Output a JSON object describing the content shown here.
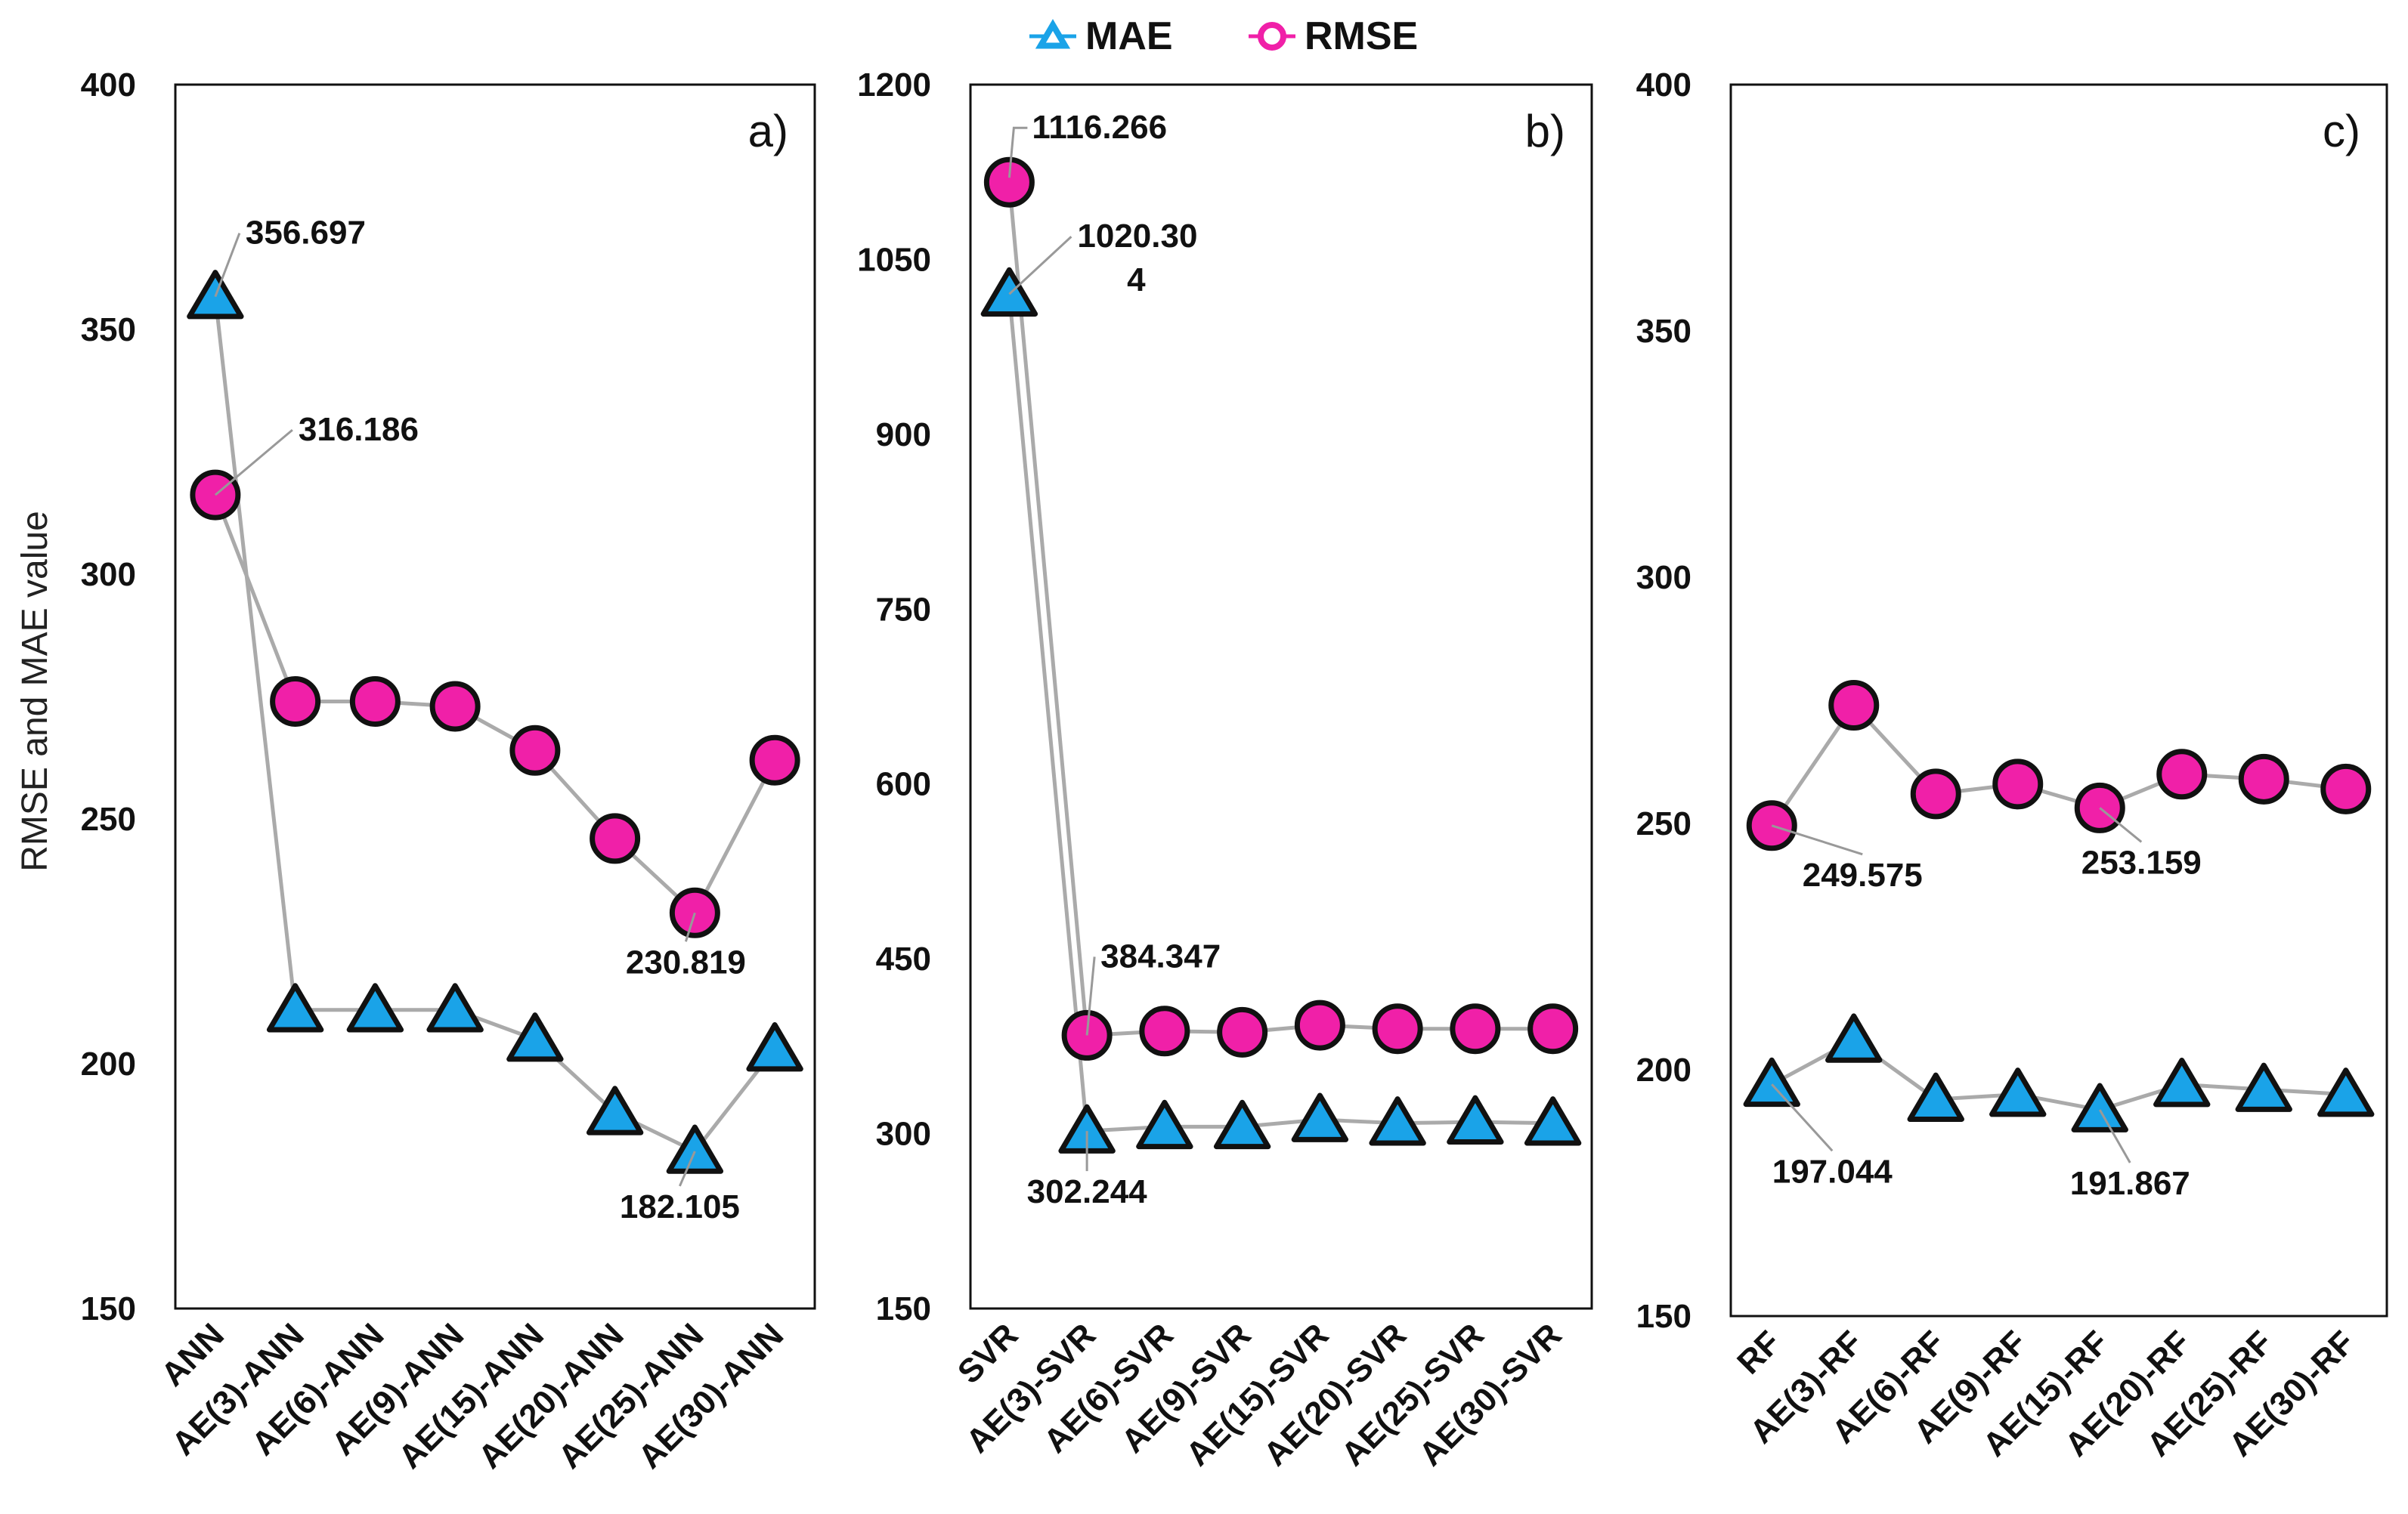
{
  "chart_data": {
    "type": "line",
    "ylabel": "RMSE and MAE value",
    "legend": [
      {
        "name": "MAE",
        "marker": "triangle",
        "color": "#1aa3e8"
      },
      {
        "name": "RMSE",
        "marker": "circle",
        "color": "#f020a8"
      }
    ],
    "colors": {
      "mae": "#1aa3e8",
      "rmse": "#f020a8",
      "line": "#aaaaaa",
      "stroke": "#111111"
    },
    "panels": [
      {
        "label": "a)",
        "ylim": [
          150,
          400
        ],
        "yticks": [
          "150",
          "200",
          "250",
          "300",
          "350",
          "400"
        ],
        "categories": [
          "ANN",
          "AE(3)-ANN",
          "AE(6)-ANN",
          "AE(9)-ANN",
          "AE(15)-ANN",
          "AE(20)-ANN",
          "AE(25)-ANN",
          "AE(30)-ANN"
        ],
        "series": [
          {
            "name": "MAE",
            "values": [
              356.697,
              211,
              211,
              211,
              205,
              190,
              182.105,
              203
            ]
          },
          {
            "name": "RMSE",
            "values": [
              316.186,
              274,
              274,
              273,
              264,
              246,
              230.819,
              262
            ]
          }
        ],
        "annotations": [
          {
            "text": "356.697",
            "series": "MAE",
            "index": 0
          },
          {
            "text": "316.186",
            "series": "RMSE",
            "index": 0
          },
          {
            "text": "230.819",
            "series": "RMSE",
            "index": 6
          },
          {
            "text": "182.105",
            "series": "MAE",
            "index": 6
          }
        ]
      },
      {
        "label": "b)",
        "ylim": [
          150,
          1200
        ],
        "yticks": [
          "150",
          "300",
          "450",
          "600",
          "750",
          "900",
          "1050",
          "1200"
        ],
        "categories": [
          "SVR",
          "AE(3)-SVR",
          "AE(6)-SVR",
          "AE(9)-SVR",
          "AE(15)-SVR",
          "AE(20)-SVR",
          "AE(25)-SVR",
          "AE(30)-SVR"
        ],
        "series": [
          {
            "name": "MAE",
            "values": [
              1020.304,
              302.244,
              306,
              306,
              312,
              309,
              310,
              309
            ]
          },
          {
            "name": "RMSE",
            "values": [
              1116.266,
              384.347,
              388,
              387,
              393,
              390,
              390,
              390
            ]
          }
        ],
        "annotations": [
          {
            "text": "1116.266",
            "series": "RMSE",
            "index": 0
          },
          {
            "text": "1020.30",
            "text2": "4",
            "series": "MAE",
            "index": 0
          },
          {
            "text": "384.347",
            "series": "RMSE",
            "index": 1
          },
          {
            "text": "302.244",
            "series": "MAE",
            "index": 1
          }
        ]
      },
      {
        "label": "c)",
        "ylim": [
          150,
          400
        ],
        "yticks": [
          "150",
          "200",
          "250",
          "300",
          "350",
          "400"
        ],
        "categories": [
          "RF",
          "AE(3)-RF",
          "AE(6)-RF",
          "AE(9)-RF",
          "AE(15)-RF",
          "AE(20)-RF",
          "AE(25)-RF",
          "AE(30)-RF"
        ],
        "series": [
          {
            "name": "MAE",
            "values": [
              197.044,
              206,
              194,
              195,
              191.867,
              197,
              196,
              195
            ]
          },
          {
            "name": "RMSE",
            "values": [
              249.575,
              274,
              256,
              258,
              253.159,
              260,
              259,
              257
            ]
          }
        ],
        "annotations": [
          {
            "text": "249.575",
            "series": "RMSE",
            "index": 0
          },
          {
            "text": "197.044",
            "series": "MAE",
            "index": 0
          },
          {
            "text": "253.159",
            "series": "RMSE",
            "index": 4
          },
          {
            "text": "191.867",
            "series": "MAE",
            "index": 4
          }
        ]
      }
    ]
  }
}
